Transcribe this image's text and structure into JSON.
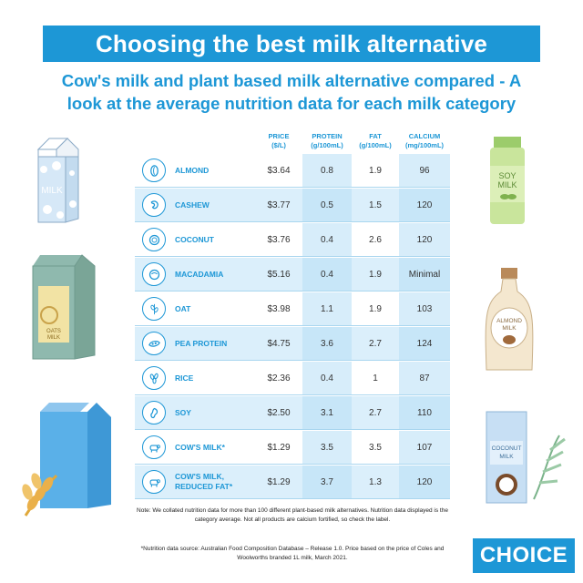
{
  "title": "Choosing the best milk alternative",
  "subtitle_line1": "Cow's milk and plant based milk alternative compared - A",
  "subtitle_line2": "look at the average nutrition data for each milk category",
  "chart_data": {
    "type": "table",
    "columns": [
      {
        "label": "PRICE",
        "unit": "($/L)"
      },
      {
        "label": "PROTEIN",
        "unit": "(g/100mL)"
      },
      {
        "label": "FAT",
        "unit": "(g/100mL)"
      },
      {
        "label": "CALCIUM",
        "unit": "(mg/100mL)"
      }
    ],
    "rows": [
      {
        "name": "ALMOND",
        "icon": "almond-icon",
        "price": "$3.64",
        "protein": "0.8",
        "fat": "1.9",
        "calcium": "96"
      },
      {
        "name": "CASHEW",
        "icon": "cashew-icon",
        "price": "$3.77",
        "protein": "0.5",
        "fat": "1.5",
        "calcium": "120"
      },
      {
        "name": "COCONUT",
        "icon": "coconut-icon",
        "price": "$3.76",
        "protein": "0.4",
        "fat": "2.6",
        "calcium": "120"
      },
      {
        "name": "MACADAMIA",
        "icon": "macadamia-icon",
        "price": "$5.16",
        "protein": "0.4",
        "fat": "1.9",
        "calcium": "Minimal"
      },
      {
        "name": "OAT",
        "icon": "oat-icon",
        "price": "$3.98",
        "protein": "1.1",
        "fat": "1.9",
        "calcium": "103"
      },
      {
        "name": "PEA PROTEIN",
        "icon": "pea-icon",
        "price": "$4.75",
        "protein": "3.6",
        "fat": "2.7",
        "calcium": "124"
      },
      {
        "name": "RICE",
        "icon": "rice-icon",
        "price": "$2.36",
        "protein": "0.4",
        "fat": "1",
        "calcium": "87"
      },
      {
        "name": "SOY",
        "icon": "soy-icon",
        "price": "$2.50",
        "protein": "3.1",
        "fat": "2.7",
        "calcium": "110"
      },
      {
        "name": "COW'S MILK*",
        "icon": "cow-icon",
        "price": "$1.29",
        "protein": "3.5",
        "fat": "3.5",
        "calcium": "107"
      },
      {
        "name": "COW'S MILK, REDUCED FAT*",
        "icon": "cow-icon",
        "price": "$1.29",
        "protein": "3.7",
        "fat": "1.3",
        "calcium": "120"
      }
    ]
  },
  "note": "Note: We collated nutrition data for more than 100 different plant-based milk alternatives. Nutrition data displayed is the category average. Not all products are calcium fortified, so check the label.",
  "source": "*Nutrition data source: Australian Food Composition Database – Release 1.0. Price based on the price of Coles and Woolworths branded 1L milk, March 2021.",
  "logo": "CHOICE",
  "illustrations": {
    "milk_carton": "MILK",
    "oat_carton_line1": "OATS",
    "oat_carton_line2": "MILK",
    "soy_bottle_line1": "SOY",
    "soy_bottle_line2": "MILK",
    "almond_bottle_line1": "ALMOND",
    "almond_bottle_line2": "MILK",
    "coconut_carton_line1": "COCONUT",
    "coconut_carton_line2": "MILK"
  },
  "colors": {
    "accent": "#1d97d6",
    "row_alt": "#dbeffb",
    "column_highlight": "#b6def5"
  }
}
